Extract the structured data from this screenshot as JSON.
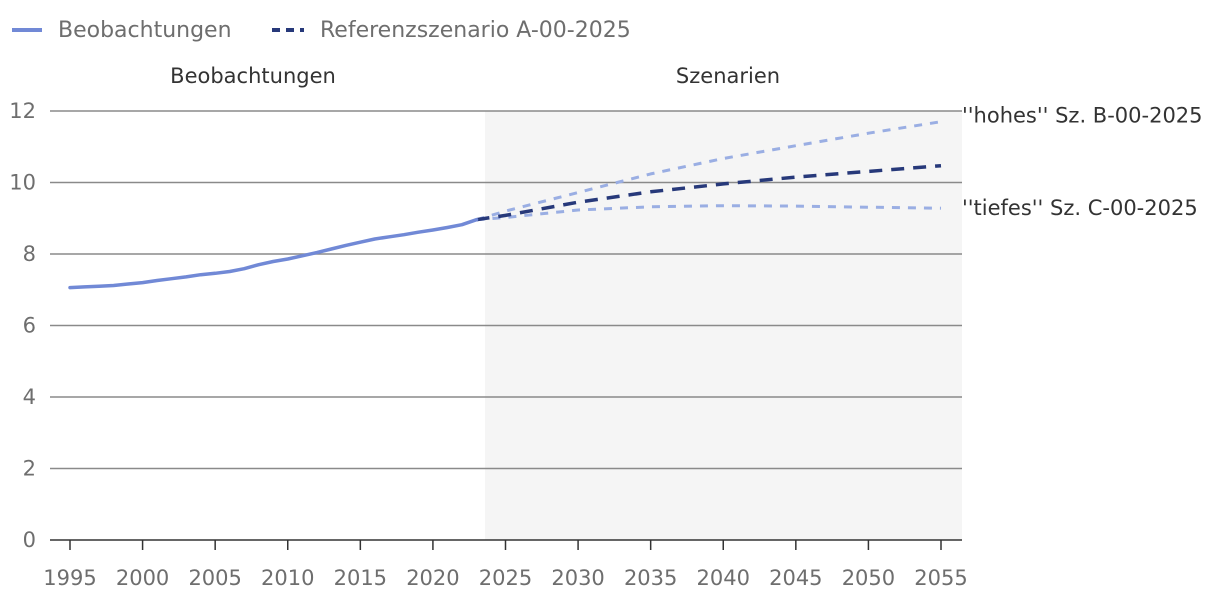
{
  "chart_data": {
    "type": "line",
    "title": "",
    "xlabel": "",
    "ylabel": "",
    "xlim": [
      1995,
      2055
    ],
    "ylim": [
      0,
      12
    ],
    "grid": true,
    "legend": [
      {
        "label": "Beobachtungen",
        "style": "solid",
        "color": "#7189d6"
      },
      {
        "label": "Referenzszenario A-00-2025",
        "style": "dashed",
        "color": "#27397a"
      }
    ],
    "sections": [
      {
        "label": "Beobachtungen"
      },
      {
        "label": "Szenarien",
        "from": 2024
      }
    ],
    "x_ticks": [
      1995,
      2000,
      2005,
      2010,
      2015,
      2020,
      2025,
      2030,
      2035,
      2040,
      2045,
      2050,
      2055
    ],
    "y_ticks": [
      0,
      2,
      4,
      6,
      8,
      10,
      12
    ],
    "annotations": [
      {
        "text": "''hohes'' Sz. B-00-2025",
        "series": "B"
      },
      {
        "text": "''tiefes'' Sz. C-00-2025",
        "series": "C"
      }
    ],
    "series": [
      {
        "name": "Beobachtungen",
        "style": "solid",
        "color": "#7189d6",
        "x": [
          1995,
          1996,
          1997,
          1998,
          1999,
          2000,
          2001,
          2002,
          2003,
          2004,
          2005,
          2006,
          2007,
          2008,
          2009,
          2010,
          2011,
          2012,
          2013,
          2014,
          2015,
          2016,
          2017,
          2018,
          2019,
          2020,
          2021,
          2022,
          2023
        ],
        "values": [
          7.06,
          7.08,
          7.1,
          7.12,
          7.16,
          7.2,
          7.26,
          7.31,
          7.36,
          7.42,
          7.46,
          7.51,
          7.59,
          7.7,
          7.79,
          7.86,
          7.95,
          8.04,
          8.14,
          8.24,
          8.33,
          8.42,
          8.48,
          8.54,
          8.61,
          8.67,
          8.74,
          8.82,
          8.96
        ]
      },
      {
        "name": "Referenzszenario A-00-2025",
        "style": "dashed",
        "color": "#27397a",
        "x": [
          2023,
          2025,
          2030,
          2035,
          2040,
          2045,
          2050,
          2055
        ],
        "values": [
          8.96,
          9.08,
          9.45,
          9.74,
          9.96,
          10.15,
          10.31,
          10.47
        ]
      },
      {
        "name": "B-00-2025",
        "style": "dotted",
        "color": "#9aaee3",
        "x": [
          2023,
          2025,
          2030,
          2035,
          2040,
          2045,
          2050,
          2055
        ],
        "values": [
          8.96,
          9.2,
          9.72,
          10.24,
          10.67,
          11.03,
          11.38,
          11.7
        ]
      },
      {
        "name": "C-00-2025",
        "style": "dotted",
        "color": "#9aaee3",
        "x": [
          2023,
          2025,
          2030,
          2035,
          2040,
          2045,
          2050,
          2055
        ],
        "values": [
          8.96,
          9.02,
          9.23,
          9.32,
          9.35,
          9.34,
          9.31,
          9.28
        ]
      }
    ]
  }
}
